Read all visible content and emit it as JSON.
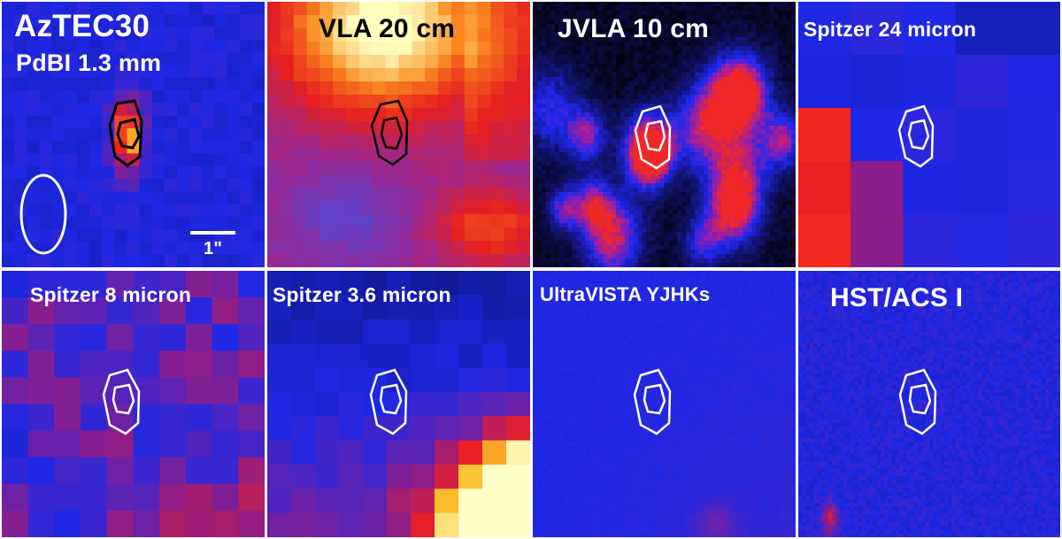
{
  "panels": [
    {
      "id": "azte30",
      "title": "AzTEC30",
      "subtitle": "PdBI 1.3 mm",
      "scalebar": "1\"",
      "title_color": "#ffffff",
      "contour_color": "#000000",
      "colormap": "blue-red-yellow"
    },
    {
      "id": "vla20",
      "title": "VLA 20 cm",
      "title_color": "#000000",
      "contour_color": "#000000",
      "colormap": "red-yellow"
    },
    {
      "id": "jvla10",
      "title": "JVLA 10 cm",
      "title_color": "#ffffff",
      "contour_color": "#ffffff",
      "colormap": "black-blue-red"
    },
    {
      "id": "spitzer24",
      "title": "Spitzer 24 micron",
      "title_color": "#ffffff",
      "contour_color": "#ffffff",
      "colormap": "blue-red"
    },
    {
      "id": "spitzer8",
      "title": "Spitzer 8 micron",
      "title_color": "#ffffff",
      "contour_color": "#ffffff",
      "colormap": "blue-purple-red"
    },
    {
      "id": "spitzer36",
      "title": "Spitzer 3.6 micron",
      "title_color": "#ffffff",
      "contour_color": "#ffffff",
      "colormap": "navy-red-yellow"
    },
    {
      "id": "ultravista",
      "title": "UltraVISTA YJHKs",
      "title_color": "#ffffff",
      "contour_color": "#ffffff",
      "colormap": "blue"
    },
    {
      "id": "hstacs",
      "title": "HST/ACS I",
      "title_color": "#ffffff",
      "contour_color": "#ffffff",
      "colormap": "noisy-blue"
    }
  ]
}
